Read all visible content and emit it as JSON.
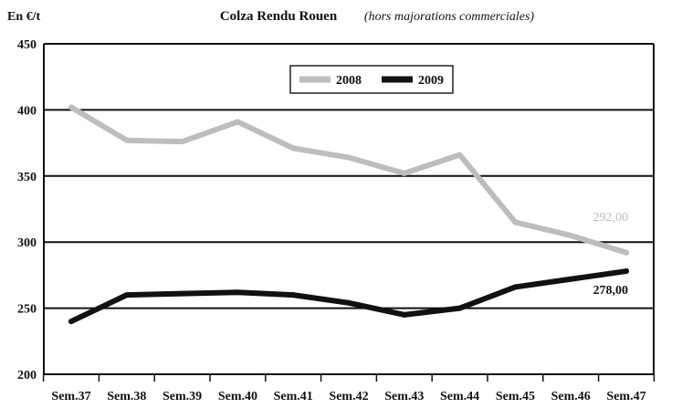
{
  "chart_data": {
    "type": "line",
    "title": "Colza Rendu Rouen",
    "subtitle": "(hors majorations commerciales)",
    "ylabel": "En €/t",
    "xlabel": "",
    "categories": [
      "Sem.37",
      "Sem.38",
      "Sem.39",
      "Sem.40",
      "Sem.41",
      "Sem.42",
      "Sem.43",
      "Sem.44",
      "Sem.45",
      "Sem.46",
      "Sem.47"
    ],
    "ylim": [
      200,
      450
    ],
    "yticks": [
      "200",
      "250",
      "300",
      "350",
      "400",
      "450"
    ],
    "grid": true,
    "legend": "top-center",
    "series": [
      {
        "name": "2008",
        "color": "#bdbdbd",
        "values": [
          402,
          377,
          376,
          391,
          371,
          364,
          352,
          366,
          315,
          305,
          292
        ],
        "end_label": "292,00"
      },
      {
        "name": "2009",
        "color": "#111111",
        "values": [
          240,
          260,
          261,
          262,
          260,
          254,
          245,
          250,
          266,
          272,
          278
        ],
        "end_label": "278,00"
      }
    ]
  }
}
